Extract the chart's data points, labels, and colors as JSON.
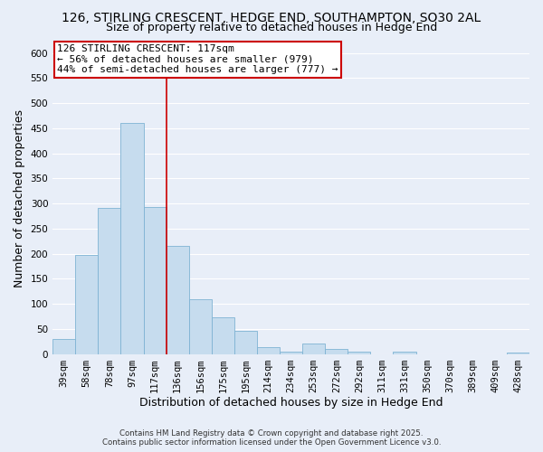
{
  "title": "126, STIRLING CRESCENT, HEDGE END, SOUTHAMPTON, SO30 2AL",
  "subtitle": "Size of property relative to detached houses in Hedge End",
  "xlabel": "Distribution of detached houses by size in Hedge End",
  "ylabel": "Number of detached properties",
  "bar_labels": [
    "39sqm",
    "58sqm",
    "78sqm",
    "97sqm",
    "117sqm",
    "136sqm",
    "156sqm",
    "175sqm",
    "195sqm",
    "214sqm",
    "234sqm",
    "253sqm",
    "272sqm",
    "292sqm",
    "311sqm",
    "331sqm",
    "350sqm",
    "370sqm",
    "389sqm",
    "409sqm",
    "428sqm"
  ],
  "bar_values": [
    30,
    197,
    291,
    461,
    293,
    215,
    110,
    73,
    46,
    13,
    5,
    20,
    10,
    4,
    0,
    5,
    0,
    0,
    0,
    0,
    2
  ],
  "bar_color": "#c6dcee",
  "bar_edge_color": "#7fb3d3",
  "highlight_line_color": "#cc0000",
  "highlight_line_index": 4,
  "annotation_text": "126 STIRLING CRESCENT: 117sqm\n← 56% of detached houses are smaller (979)\n44% of semi-detached houses are larger (777) →",
  "annotation_box_facecolor": "#ffffff",
  "annotation_box_edgecolor": "#cc0000",
  "ylim": [
    0,
    620
  ],
  "yticks": [
    0,
    50,
    100,
    150,
    200,
    250,
    300,
    350,
    400,
    450,
    500,
    550,
    600
  ],
  "background_color": "#e8eef8",
  "grid_color": "#ffffff",
  "footer_line1": "Contains HM Land Registry data © Crown copyright and database right 2025.",
  "footer_line2": "Contains public sector information licensed under the Open Government Licence v3.0.",
  "title_fontsize": 10,
  "subtitle_fontsize": 9,
  "axis_label_fontsize": 9,
  "tick_fontsize": 7.5,
  "annotation_fontsize": 8
}
